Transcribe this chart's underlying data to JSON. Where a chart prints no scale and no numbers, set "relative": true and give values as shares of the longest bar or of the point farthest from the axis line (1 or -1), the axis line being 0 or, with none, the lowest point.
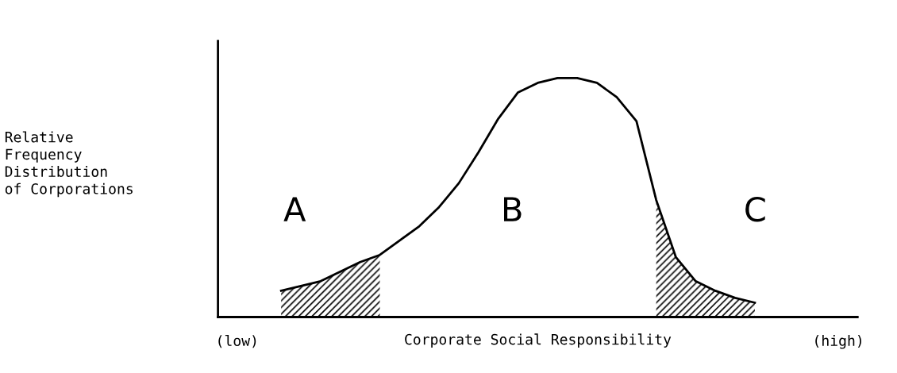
{
  "chart_data": {
    "type": "line",
    "relative": true,
    "xlabel": "Corporate Social Responsibility",
    "categories": [
      null,
      null,
      null,
      null,
      null,
      null,
      null,
      null,
      null,
      null,
      null,
      null,
      null,
      null,
      null,
      null,
      null,
      null,
      null,
      null,
      null,
      null,
      null,
      null,
      null,
      null,
      null,
      null,
      null,
      null,
      null,
      null,
      null
    ],
    "series": [
      {
        "color": "#000000",
        "values": [
          null,
          null,
          null,
          0.11,
          0.13,
          0.15,
          0.19,
          0.23,
          0.26,
          0.32,
          0.38,
          0.46,
          0.56,
          0.69,
          0.83,
          0.94,
          0.98,
          1,
          1,
          0.98,
          0.92,
          0.82,
          0.49,
          0.25,
          0.15,
          0.11,
          0.08,
          0.06,
          null,
          null,
          null,
          null,
          null
        ]
      },
      {
        "type": "area",
        "color": "#000000",
        "values": [
          null,
          null,
          null,
          0.11,
          0.13,
          0.15,
          0.19,
          0.23,
          0.26,
          null,
          null,
          null,
          null,
          null,
          null,
          null,
          null,
          null,
          null,
          null,
          null,
          null,
          null,
          null,
          null,
          null,
          null,
          null,
          null,
          null,
          null,
          null,
          null
        ]
      },
      {
        "type": "area",
        "color": "#000000",
        "values": [
          null,
          null,
          null,
          null,
          null,
          null,
          null,
          null,
          null,
          null,
          null,
          null,
          null,
          null,
          null,
          null,
          null,
          null,
          null,
          null,
          null,
          null,
          0.49,
          0.25,
          0.15,
          0.11,
          0.08,
          0.06,
          null,
          null,
          null,
          null,
          null
        ]
      }
    ],
    "annotations": [
      "A",
      "B",
      "C",
      "(low)",
      "(high)",
      "Relative\nFrequency\nDistribution\nof Corporations"
    ],
    "legend": false,
    "grid": false
  }
}
